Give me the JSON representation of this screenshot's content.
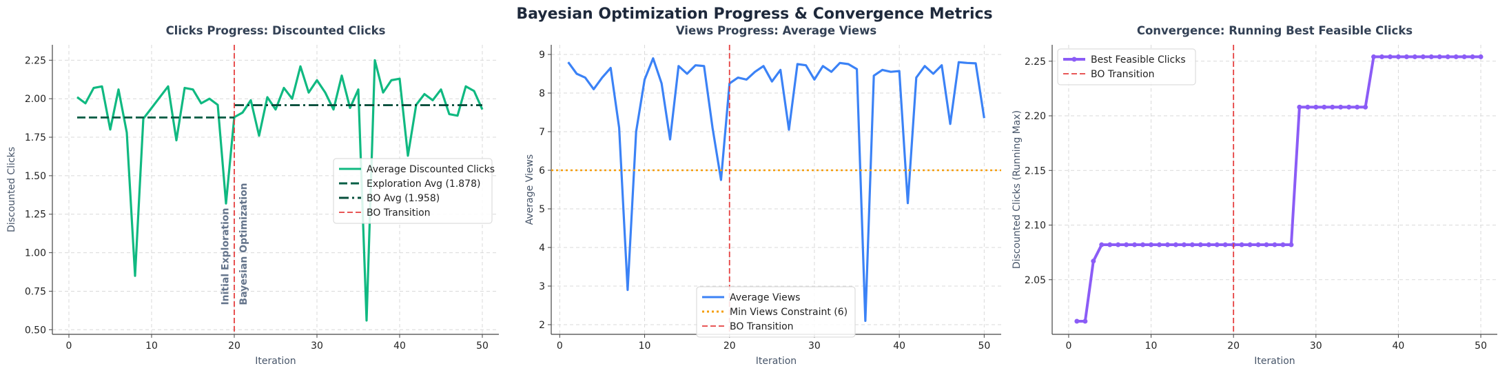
{
  "figure": {
    "title": "Bayesian Optimization Progress & Convergence Metrics"
  },
  "chart_data": [
    {
      "type": "line",
      "title": "Clicks Progress: Discounted Clicks",
      "xlabel": "Iteration",
      "ylabel": "Discounted Clicks",
      "xlim": [
        -2,
        52
      ],
      "ylim": [
        0.47,
        2.35
      ],
      "xticks": [
        0,
        10,
        20,
        30,
        40,
        50
      ],
      "yticks": [
        0.5,
        0.75,
        1.0,
        1.25,
        1.5,
        1.75,
        2.0,
        2.25
      ],
      "ytick_labels": [
        "0.50",
        "0.75",
        "1.00",
        "1.25",
        "1.50",
        "1.75",
        "2.00",
        "2.25"
      ],
      "grid": true,
      "legend": "center-right",
      "series": [
        {
          "name": "Average Discounted Clicks",
          "color": "#10b981",
          "style": "solid",
          "x": [
            1,
            2,
            3,
            4,
            5,
            6,
            7,
            8,
            9,
            10,
            11,
            12,
            13,
            14,
            15,
            16,
            17,
            18,
            19,
            20,
            21,
            22,
            23,
            24,
            25,
            26,
            27,
            28,
            29,
            30,
            31,
            32,
            33,
            34,
            35,
            36,
            37,
            38,
            39,
            40,
            41,
            42,
            43,
            44,
            45,
            46,
            47,
            48,
            49,
            50
          ],
          "values": [
            2.01,
            1.97,
            2.07,
            2.08,
            1.8,
            2.06,
            1.78,
            0.85,
            1.87,
            1.94,
            2.01,
            2.08,
            1.73,
            2.07,
            2.06,
            1.97,
            2.0,
            1.96,
            1.32,
            1.88,
            1.91,
            1.99,
            1.76,
            2.01,
            1.93,
            2.07,
            2.0,
            2.21,
            2.04,
            2.12,
            2.04,
            1.93,
            2.15,
            1.94,
            2.06,
            0.56,
            2.25,
            2.04,
            2.12,
            2.13,
            1.63,
            1.96,
            2.03,
            1.99,
            2.06,
            1.9,
            1.89,
            2.08,
            2.05,
            1.93
          ]
        },
        {
          "name": "Exploration Avg (1.878)",
          "color": "#065f46",
          "style": "dashed",
          "x": [
            1,
            20
          ],
          "values": [
            1.878,
            1.878
          ]
        },
        {
          "name": "BO Avg (1.958)",
          "color": "#064e3b",
          "style": "dashdot",
          "x": [
            20,
            50
          ],
          "values": [
            1.958,
            1.958
          ]
        }
      ],
      "vline": {
        "x": 20,
        "name": "BO Transition",
        "color": "#e53e3e"
      },
      "annotations": [
        {
          "text": "Initial Exploration",
          "x": 19.3,
          "y": 0.66
        },
        {
          "text": "Bayesian Optimization",
          "x": 20.7,
          "y": 0.66
        }
      ]
    },
    {
      "type": "line",
      "title": "Views Progress: Average Views",
      "xlabel": "Iteration",
      "ylabel": "Average Views",
      "xlim": [
        -1,
        52
      ],
      "ylim": [
        1.75,
        9.25
      ],
      "xticks": [
        0,
        10,
        20,
        30,
        40,
        50
      ],
      "yticks": [
        2,
        3,
        4,
        5,
        6,
        7,
        8,
        9
      ],
      "ytick_labels": [
        "2",
        "3",
        "4",
        "5",
        "6",
        "7",
        "8",
        "9"
      ],
      "grid": true,
      "legend": "bottom-center",
      "series": [
        {
          "name": "Average Views",
          "color": "#3b82f6",
          "style": "solid",
          "x": [
            1,
            2,
            3,
            4,
            5,
            6,
            7,
            8,
            9,
            10,
            11,
            12,
            13,
            14,
            15,
            16,
            17,
            18,
            19,
            20,
            21,
            22,
            23,
            24,
            25,
            26,
            27,
            28,
            29,
            30,
            31,
            32,
            33,
            34,
            35,
            36,
            37,
            38,
            39,
            40,
            41,
            42,
            43,
            44,
            45,
            46,
            47,
            48,
            49,
            50
          ],
          "values": [
            8.8,
            8.5,
            8.4,
            8.1,
            8.4,
            8.65,
            7.1,
            2.9,
            7.0,
            8.35,
            8.9,
            8.25,
            6.8,
            8.7,
            8.5,
            8.72,
            8.7,
            7.1,
            5.75,
            8.25,
            8.4,
            8.35,
            8.55,
            8.7,
            8.3,
            8.6,
            7.05,
            8.75,
            8.72,
            8.35,
            8.7,
            8.55,
            8.78,
            8.75,
            8.62,
            2.1,
            8.45,
            8.6,
            8.55,
            8.57,
            5.15,
            8.4,
            8.7,
            8.5,
            8.72,
            7.2,
            8.8,
            8.78,
            8.77,
            7.35
          ]
        },
        {
          "name": "Min Views Constraint (6)",
          "color": "#f59e0b",
          "style": "dotted",
          "x": [
            -1,
            52
          ],
          "values": [
            6,
            6
          ]
        }
      ],
      "vline": {
        "x": 20,
        "name": "BO Transition",
        "color": "#e53e3e"
      }
    },
    {
      "type": "line",
      "title": "Convergence: Running Best Feasible Clicks",
      "xlabel": "Iteration",
      "ylabel": "Discounted Clicks (Running Max)",
      "xlim": [
        -2,
        52
      ],
      "ylim": [
        2.0,
        2.265
      ],
      "xticks": [
        0,
        10,
        20,
        30,
        40,
        50
      ],
      "yticks": [
        2.05,
        2.1,
        2.15,
        2.2,
        2.25
      ],
      "ytick_labels": [
        "2.05",
        "2.10",
        "2.15",
        "2.20",
        "2.25"
      ],
      "grid": true,
      "legend": "top-left",
      "series": [
        {
          "name": "Best Feasible Clicks",
          "color": "#8b5cf6",
          "style": "solid-markers",
          "x": [
            1,
            2,
            3,
            4,
            5,
            6,
            7,
            8,
            9,
            10,
            11,
            12,
            13,
            14,
            15,
            16,
            17,
            18,
            19,
            20,
            21,
            22,
            23,
            24,
            25,
            26,
            27,
            28,
            29,
            30,
            31,
            32,
            33,
            34,
            35,
            36,
            37,
            38,
            39,
            40,
            41,
            42,
            43,
            44,
            45,
            46,
            47,
            48,
            49,
            50
          ],
          "values": [
            2.012,
            2.012,
            2.067,
            2.082,
            2.082,
            2.082,
            2.082,
            2.082,
            2.082,
            2.082,
            2.082,
            2.082,
            2.082,
            2.082,
            2.082,
            2.082,
            2.082,
            2.082,
            2.082,
            2.082,
            2.082,
            2.082,
            2.082,
            2.082,
            2.082,
            2.082,
            2.082,
            2.208,
            2.208,
            2.208,
            2.208,
            2.208,
            2.208,
            2.208,
            2.208,
            2.208,
            2.254,
            2.254,
            2.254,
            2.254,
            2.254,
            2.254,
            2.254,
            2.254,
            2.254,
            2.254,
            2.254,
            2.254,
            2.254,
            2.254
          ]
        }
      ],
      "vline": {
        "x": 20,
        "name": "BO Transition",
        "color": "#e53e3e"
      }
    }
  ]
}
